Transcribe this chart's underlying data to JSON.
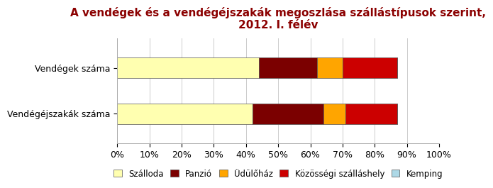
{
  "title": "A vendégek és a vendégéjszakák megoszlása szállástípusok szerint,\n2012. I. félév",
  "categories": [
    "Vendégéjszakák száma",
    "Vendégek száma"
  ],
  "series": [
    {
      "label": "Szálloda",
      "values": [
        0.42,
        0.44
      ],
      "color": "#FFFFB0"
    },
    {
      "label": "Panzió",
      "values": [
        0.22,
        0.18
      ],
      "color": "#7B0000"
    },
    {
      "label": "Üdülőház",
      "values": [
        0.07,
        0.08
      ],
      "color": "#FFA500"
    },
    {
      "label": "Közösségi szálláshely",
      "values": [
        0.16,
        0.17
      ],
      "color": "#CC0000"
    },
    {
      "label": "Kemping",
      "values": [
        0.0,
        0.0
      ],
      "color": "#ADD8E6"
    }
  ],
  "title_color": "#8B0000",
  "title_fontsize": 11,
  "tick_fontsize": 9,
  "label_fontsize": 9,
  "legend_fontsize": 8.5,
  "bar_height": 0.45,
  "background_color": "#ffffff",
  "xlim": [
    0,
    1.0
  ],
  "xticks": [
    0.0,
    0.1,
    0.2,
    0.3,
    0.4,
    0.5,
    0.6,
    0.7,
    0.8,
    0.9,
    1.0
  ]
}
